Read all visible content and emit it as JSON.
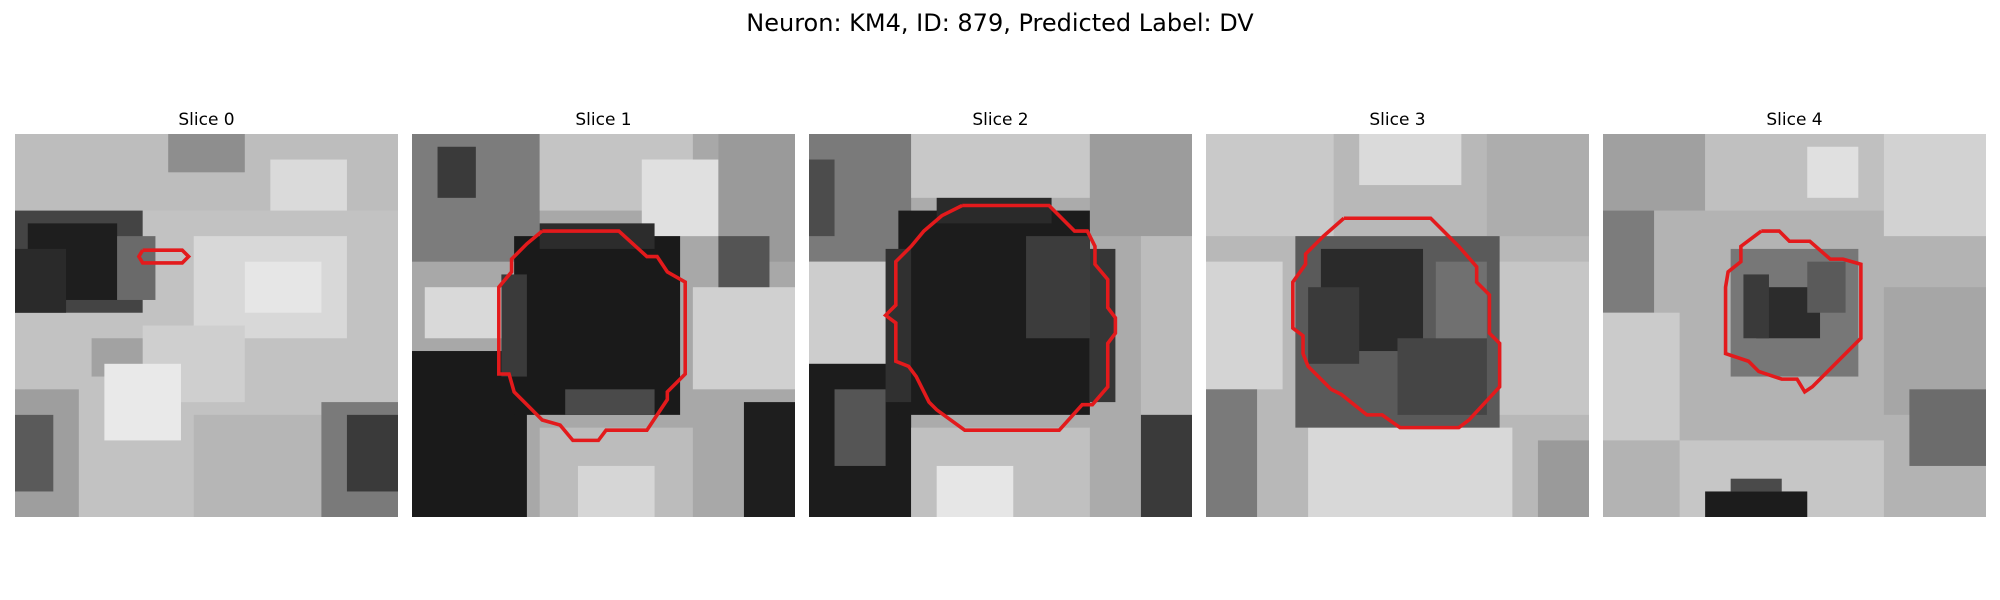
{
  "figure": {
    "title": "Neuron: KM4, ID: 879, Predicted Label: DV"
  },
  "colors": {
    "contour": "#e31a1c",
    "image_colormap": "grayscale"
  },
  "panels": [
    {
      "title": "Slice 0"
    },
    {
      "title": "Slice 1"
    },
    {
      "title": "Slice 2"
    },
    {
      "title": "Slice 3"
    },
    {
      "title": "Slice 4"
    }
  ]
}
